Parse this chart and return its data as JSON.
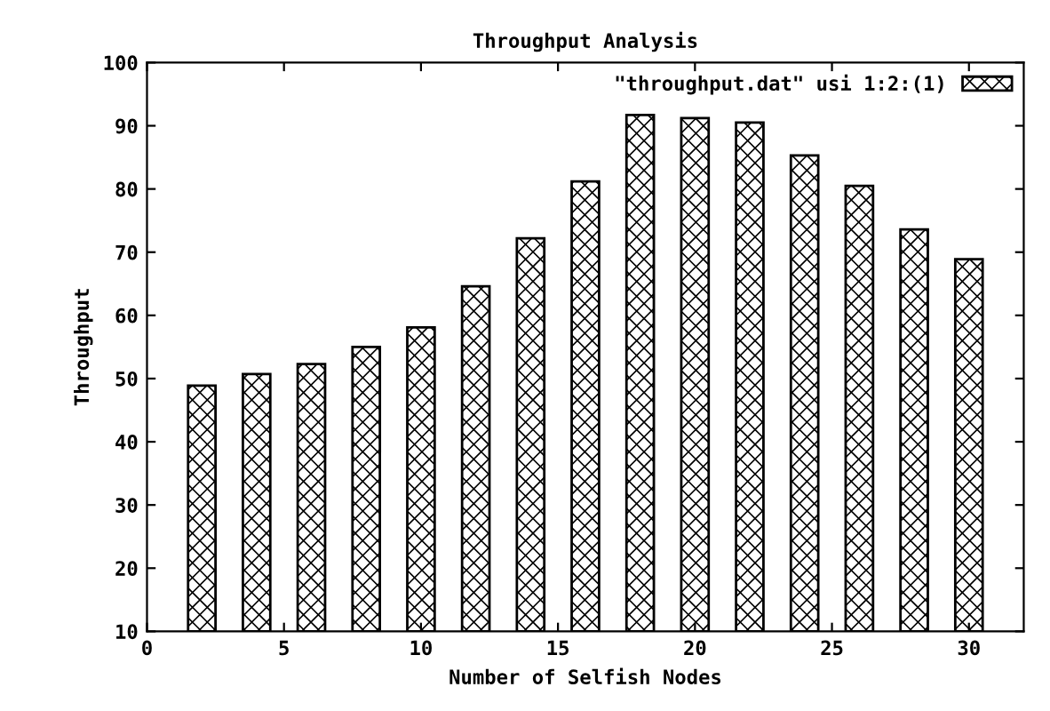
{
  "chart_data": {
    "type": "bar",
    "title": "Throughput Analysis",
    "xlabel": "Number of Selfish Nodes",
    "ylabel": "Throughput",
    "x": [
      2,
      4,
      6,
      8,
      10,
      12,
      14,
      16,
      18,
      20,
      22,
      24,
      26,
      28,
      30
    ],
    "series": [
      {
        "name": "\"throughput.dat\" usi 1:2:(1)",
        "color": "#000000",
        "values": [
          48.9,
          50.7,
          52.3,
          55.0,
          58.1,
          64.6,
          72.2,
          81.2,
          91.7,
          91.2,
          90.5,
          85.3,
          80.5,
          73.6,
          68.9
        ]
      }
    ],
    "xlim": [
      0,
      32
    ],
    "xticks": [
      0,
      5,
      10,
      15,
      20,
      25,
      30
    ],
    "ylim": [
      10,
      100
    ],
    "yticks": [
      10,
      20,
      30,
      40,
      50,
      60,
      70,
      80,
      90,
      100
    ],
    "grid": false,
    "legend": "top right"
  }
}
